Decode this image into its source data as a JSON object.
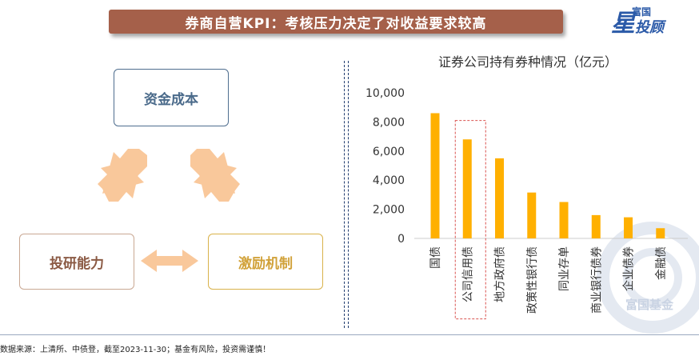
{
  "header": {
    "title": "券商自营KPI：考核压力决定了对收益要求较高"
  },
  "logo": {
    "star_char": "星",
    "brand_small": "富国",
    "brand_big": "投顾"
  },
  "diagram": {
    "cost_label": "资金成本",
    "research_label": "投研能力",
    "incentive_label": "激励机制",
    "arrow_color": "#f9c89b"
  },
  "chart_title": "证券公司持有券种情况（亿元）",
  "chart_data": {
    "type": "bar",
    "title": "证券公司持有券种情况（亿元）",
    "categories": [
      "国债",
      "公司信用债",
      "地方政府债",
      "政策性银行债",
      "同业存单",
      "商业银行债券",
      "企业债券",
      "金融债"
    ],
    "values": [
      8600,
      6800,
      5500,
      3150,
      2500,
      1600,
      1450,
      700
    ],
    "ylim": [
      0,
      10000
    ],
    "yticks": [
      0,
      2000,
      4000,
      6000,
      8000,
      10000
    ],
    "ytick_labels": [
      "0",
      "2,000",
      "4,000",
      "6,000",
      "8,000",
      "10,000"
    ],
    "bar_color": "#ffb000",
    "highlight_category": "公司信用债",
    "highlight_color": "#d9534f",
    "grid": false,
    "legend": "none"
  },
  "watermark": "富国基金",
  "footnote": "数据来源：上清所、中债登，截至2023-11-30；基金有风险，投资需谨慎！"
}
